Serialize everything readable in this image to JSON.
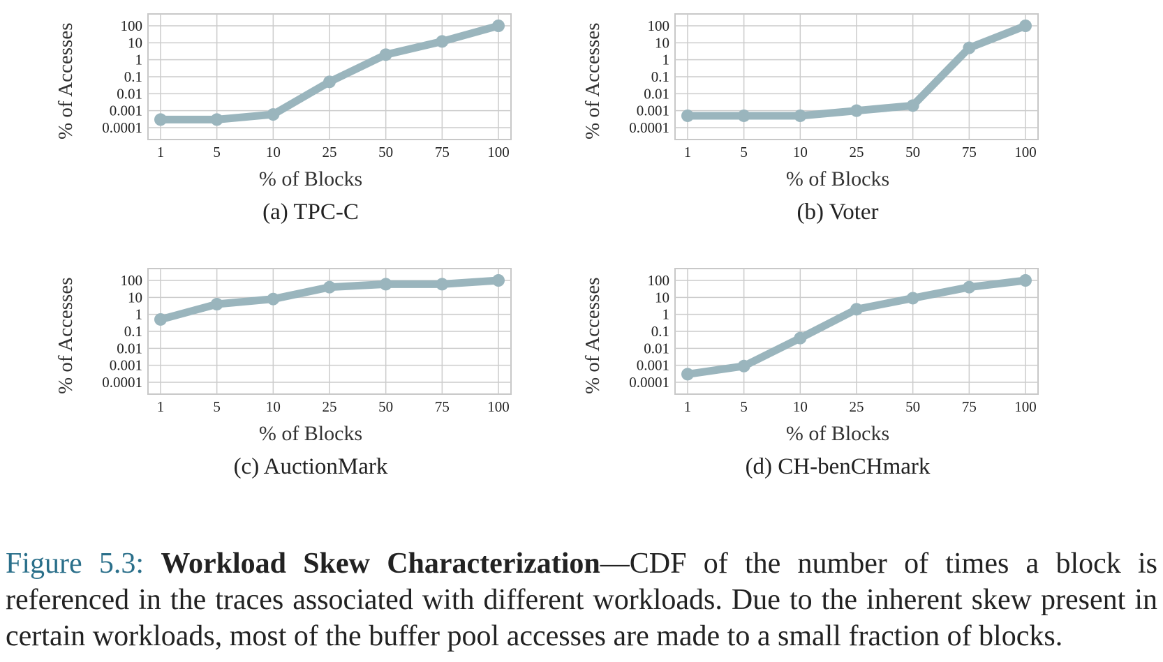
{
  "colors": {
    "line": "#9ab5bd",
    "grid": "#cccccc",
    "frame": "#c8c8c8",
    "figure_number": "#2a6f8a"
  },
  "chart_data": [
    {
      "type": "line",
      "caption": "(a) TPC-C",
      "xlabel": "% of Blocks",
      "ylabel": "% of Accesses",
      "yscale": "log",
      "categories": [
        "1",
        "5",
        "10",
        "25",
        "50",
        "75",
        "100"
      ],
      "yticks": [
        "100",
        "10",
        "1",
        "0.1",
        "0.01",
        "0.001",
        "0.0001"
      ],
      "ylim": [
        0.0001,
        100
      ],
      "grid": true,
      "series": [
        {
          "values": [
            0.0003,
            0.0003,
            0.0006,
            0.05,
            2,
            12,
            100
          ]
        }
      ]
    },
    {
      "type": "line",
      "caption": "(b) Voter",
      "xlabel": "% of Blocks",
      "ylabel": "% of Accesses",
      "yscale": "log",
      "categories": [
        "1",
        "5",
        "10",
        "25",
        "50",
        "75",
        "100"
      ],
      "yticks": [
        "100",
        "10",
        "1",
        "0.1",
        "0.01",
        "0.001",
        "0.0001"
      ],
      "ylim": [
        0.0001,
        100
      ],
      "grid": true,
      "series": [
        {
          "values": [
            0.0005,
            0.0005,
            0.0005,
            0.001,
            0.002,
            5,
            100
          ]
        }
      ]
    },
    {
      "type": "line",
      "caption": "(c) AuctionMark",
      "xlabel": "% of Blocks",
      "ylabel": "% of Accesses",
      "yscale": "log",
      "categories": [
        "1",
        "5",
        "10",
        "25",
        "50",
        "75",
        "100"
      ],
      "yticks": [
        "100",
        "10",
        "1",
        "0.1",
        "0.01",
        "0.001",
        "0.0001"
      ],
      "ylim": [
        0.0001,
        100
      ],
      "grid": true,
      "series": [
        {
          "values": [
            0.5,
            4,
            8,
            40,
            60,
            60,
            100
          ]
        }
      ]
    },
    {
      "type": "line",
      "caption": "(d) CH-benCHmark",
      "xlabel": "% of Blocks",
      "ylabel": "% of Accesses",
      "yscale": "log",
      "categories": [
        "1",
        "5",
        "10",
        "25",
        "50",
        "75",
        "100"
      ],
      "yticks": [
        "100",
        "10",
        "1",
        "0.1",
        "0.01",
        "0.001",
        "0.0001"
      ],
      "ylim": [
        0.0001,
        100
      ],
      "grid": true,
      "series": [
        {
          "values": [
            0.0003,
            0.0009,
            0.04,
            2,
            9,
            40,
            100
          ]
        }
      ]
    }
  ],
  "caption": {
    "figure_number": "Figure 5.3:",
    "title": "Workload Skew Characterization",
    "text": "—CDF of the number of times a block is referenced in the traces associated with different workloads. Due to the inherent skew present in certain workloads, most of the buffer pool accesses are made to a small fraction of blocks."
  }
}
